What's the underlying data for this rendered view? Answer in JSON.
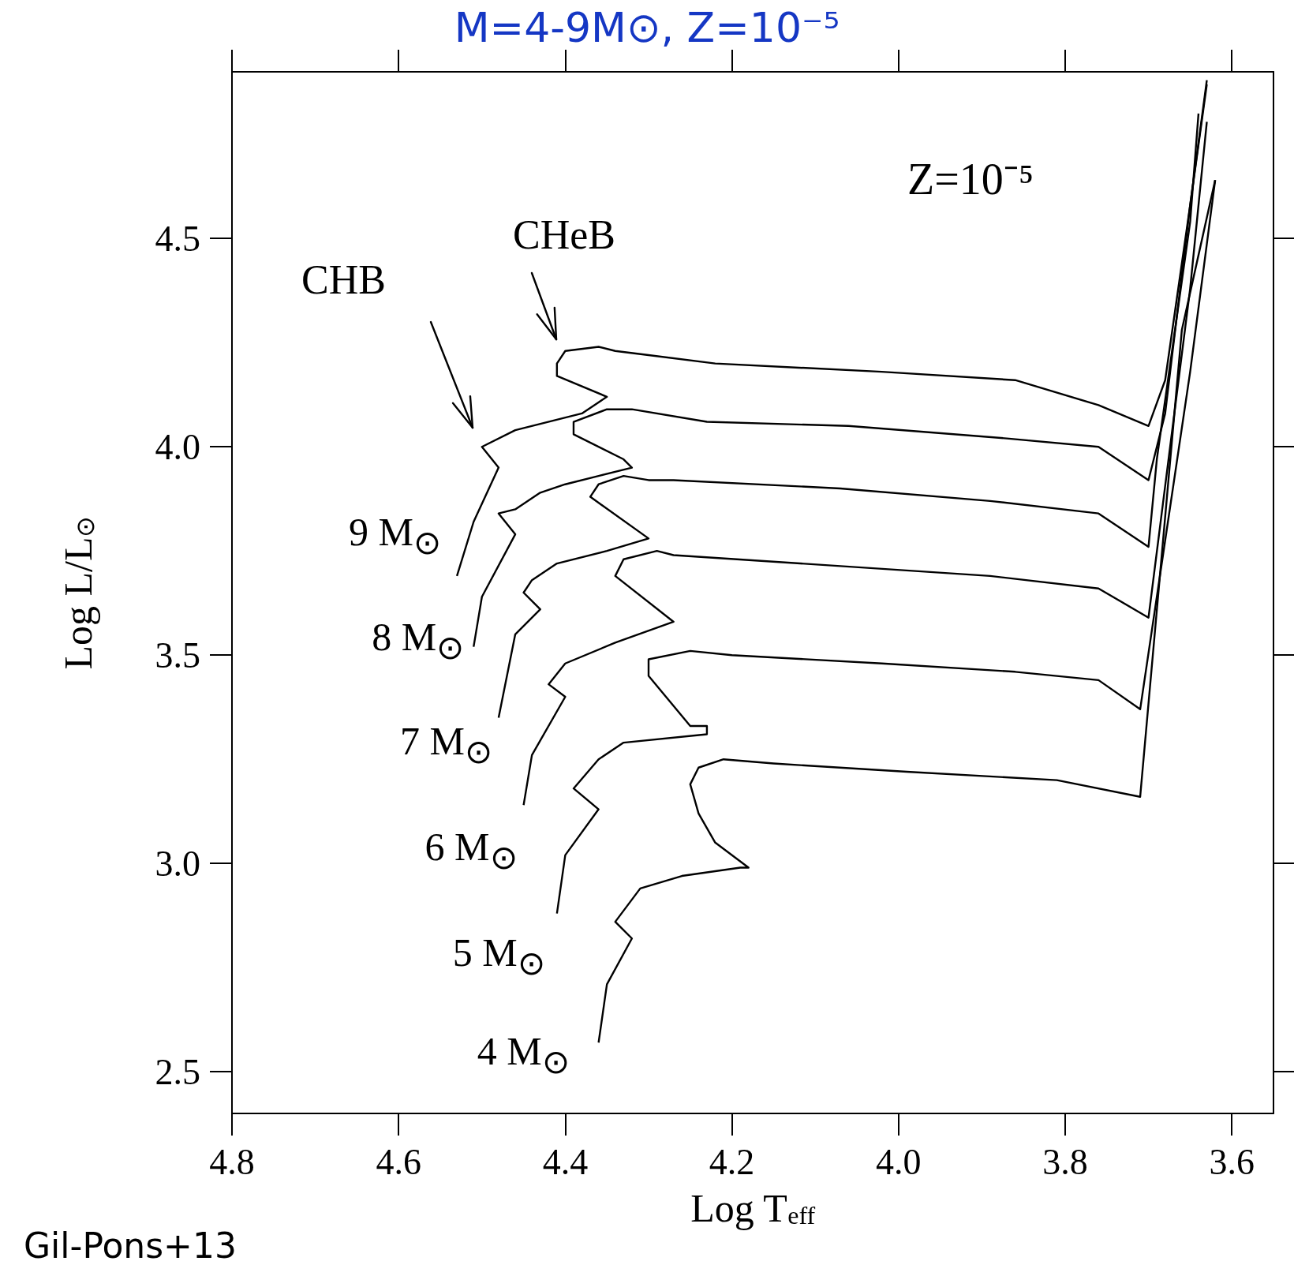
{
  "chart_data": {
    "type": "line",
    "title": "M=4-9M⊙, Z=10⁻⁵",
    "xlabel": "Log T$_{eff}$",
    "ylabel": "Log L/L$_{⊙}$",
    "marker": "none",
    "xlim": [
      4.8,
      3.55
    ],
    "xticks": [
      4.8,
      4.6,
      4.4,
      4.2,
      {
        "value": 4,
        "label": "4.0"
      },
      3.8,
      3.6
    ],
    "ylim": [
      2.4,
      4.9
    ],
    "yticks": [
      2.5,
      {
        "value": 3,
        "label": "3.0"
      },
      3.5,
      {
        "value": 4,
        "label": "4.0"
      },
      4.5
    ],
    "series": [
      {
        "name": "9 M$_{⊙}$",
        "color": "#000000",
        "x": [
          4.53,
          4.51,
          4.48,
          4.5,
          4.46,
          4.38,
          4.35,
          4.41,
          4.41,
          4.4,
          4.36,
          4.34,
          4.3,
          4.22,
          4.02,
          3.86,
          3.76,
          3.7,
          3.68,
          3.65,
          3.63
        ],
        "values": [
          3.69,
          3.82,
          3.95,
          4.0,
          4.04,
          4.08,
          4.12,
          4.17,
          4.2,
          4.23,
          4.24,
          4.23,
          4.22,
          4.2,
          4.18,
          4.16,
          4.1,
          4.05,
          4.16,
          4.58,
          4.88
        ]
      },
      {
        "name": "8 M$_{⊙}$",
        "color": "#000000",
        "x": [
          4.51,
          4.5,
          4.46,
          4.48,
          4.46,
          4.43,
          4.4,
          4.36,
          4.32,
          4.33,
          4.39,
          4.39,
          4.35,
          4.32,
          4.23,
          4.06,
          3.87,
          3.76,
          3.7,
          3.68,
          3.65,
          3.63
        ],
        "values": [
          3.52,
          3.64,
          3.79,
          3.84,
          3.85,
          3.89,
          3.91,
          3.93,
          3.95,
          3.97,
          4.03,
          4.06,
          4.09,
          4.09,
          4.06,
          4.05,
          4.02,
          4.0,
          3.92,
          4.08,
          4.58,
          4.87
        ]
      },
      {
        "name": "7 M$_{⊙}$",
        "color": "#000000",
        "x": [
          4.48,
          4.46,
          4.43,
          4.45,
          4.44,
          4.41,
          4.35,
          4.3,
          4.37,
          4.36,
          4.33,
          4.3,
          4.27,
          4.07,
          3.89,
          3.76,
          3.7,
          3.69,
          3.65,
          3.64
        ],
        "values": [
          3.35,
          3.55,
          3.61,
          3.65,
          3.68,
          3.72,
          3.75,
          3.78,
          3.88,
          3.91,
          3.93,
          3.92,
          3.92,
          3.9,
          3.87,
          3.84,
          3.76,
          3.97,
          4.54,
          4.8
        ]
      },
      {
        "name": "6 M$_{⊙}$",
        "color": "#000000",
        "x": [
          4.45,
          4.44,
          4.4,
          4.42,
          4.4,
          4.34,
          4.27,
          4.34,
          4.33,
          4.29,
          4.27,
          3.89,
          3.76,
          3.7,
          3.65,
          3.63
        ],
        "values": [
          3.14,
          3.26,
          3.4,
          3.43,
          3.48,
          3.53,
          3.58,
          3.69,
          3.73,
          3.75,
          3.74,
          3.69,
          3.66,
          3.59,
          4.38,
          4.78
        ]
      },
      {
        "name": "5 M$_{⊙}$",
        "color": "#000000",
        "x": [
          4.41,
          4.4,
          4.36,
          4.39,
          4.36,
          4.33,
          4.23,
          4.23,
          4.25,
          4.3,
          4.3,
          4.25,
          4.2,
          4.02,
          3.86,
          3.76,
          3.71,
          3.65,
          3.62
        ],
        "values": [
          2.88,
          3.02,
          3.13,
          3.18,
          3.25,
          3.29,
          3.31,
          3.33,
          3.33,
          3.45,
          3.49,
          3.51,
          3.5,
          3.48,
          3.46,
          3.44,
          3.37,
          4.18,
          4.64
        ]
      },
      {
        "name": "4 M$_{⊙}$",
        "color": "#000000",
        "x": [
          4.36,
          4.35,
          4.32,
          4.34,
          4.31,
          4.26,
          4.19,
          4.18,
          4.22,
          4.24,
          4.25,
          4.24,
          4.21,
          4.15,
          3.99,
          3.81,
          3.71,
          3.66,
          3.62
        ],
        "values": [
          2.57,
          2.71,
          2.82,
          2.86,
          2.94,
          2.97,
          2.99,
          2.99,
          3.05,
          3.12,
          3.19,
          3.23,
          3.25,
          3.24,
          3.22,
          3.2,
          3.16,
          4.28,
          4.64
        ]
      }
    ],
    "annotations": [
      "CHB",
      "CHeB",
      "Z=10⁻⁵",
      "Gil-Pons+13"
    ]
  }
}
